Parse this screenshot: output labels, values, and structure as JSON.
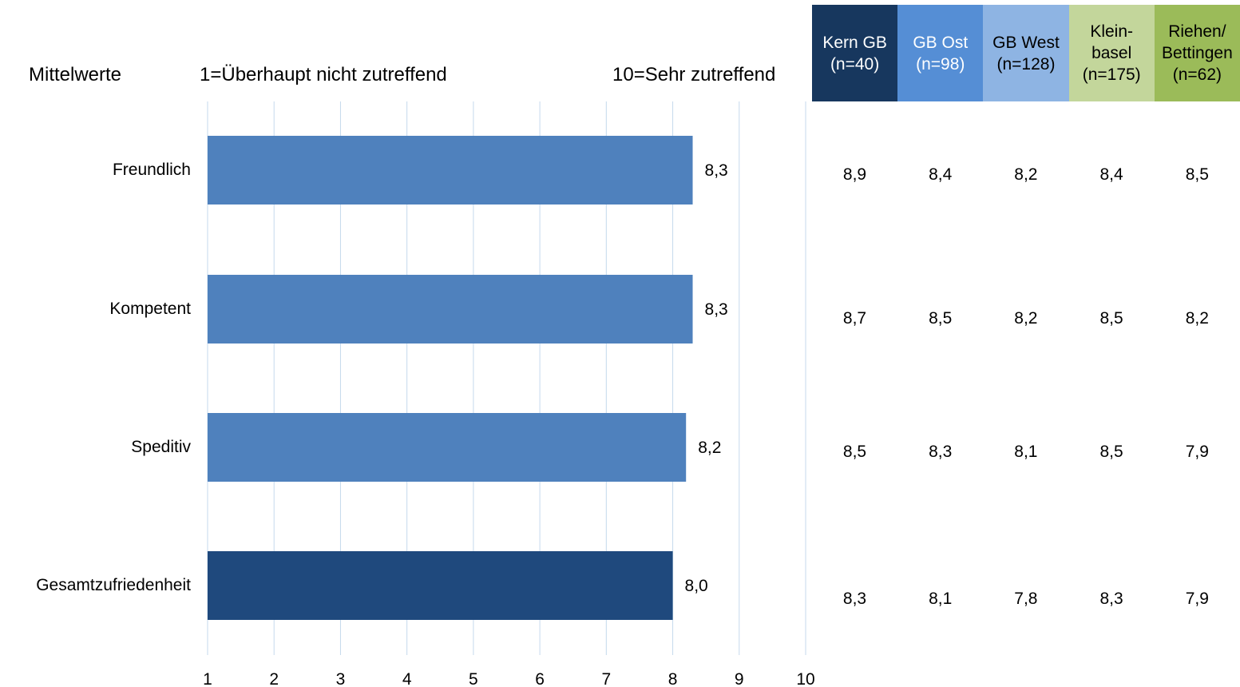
{
  "header": {
    "left": "Mittelwerte",
    "scale_low": "1=Überhaupt nicht zutreffend",
    "scale_high": "10=Sehr zutreffend"
  },
  "chart_data": {
    "type": "bar",
    "orientation": "horizontal",
    "categories": [
      "Freundlich",
      "Kompetent",
      "Speditiv",
      "Gesamtzufriedenheit"
    ],
    "values": [
      8.3,
      8.3,
      8.2,
      8.0
    ],
    "value_labels": [
      "8,3",
      "8,3",
      "8,2",
      "8,0"
    ],
    "bar_colors": [
      "#4f81bd",
      "#4f81bd",
      "#4f81bd",
      "#1f497d"
    ],
    "xlim": [
      1,
      10
    ],
    "xticks": [
      1,
      2,
      3,
      4,
      5,
      6,
      7,
      8,
      9,
      10
    ],
    "grid": "vertical",
    "gridline_color": "#c5d9ec"
  },
  "table": {
    "columns": [
      {
        "lines": [
          "Kern GB",
          "(n=40)"
        ],
        "bg": "#17375e",
        "fg": "#ffffff"
      },
      {
        "lines": [
          "GB Ost",
          "(n=98)"
        ],
        "bg": "#558ed5",
        "fg": "#ffffff"
      },
      {
        "lines": [
          "GB West",
          "(n=128)"
        ],
        "bg": "#8eb4e3",
        "fg": "#000000"
      },
      {
        "lines": [
          "Klein-",
          "basel",
          "(n=175)"
        ],
        "bg": "#c3d69b",
        "fg": "#000000"
      },
      {
        "lines": [
          "Riehen/",
          "Bettingen",
          "(n=62)"
        ],
        "bg": "#9bbb59",
        "fg": "#000000"
      }
    ],
    "rows": [
      [
        "8,9",
        "8,4",
        "8,2",
        "8,4",
        "8,5"
      ],
      [
        "8,7",
        "8,5",
        "8,2",
        "8,5",
        "8,2"
      ],
      [
        "8,5",
        "8,3",
        "8,1",
        "8,5",
        "7,9"
      ],
      [
        "8,3",
        "8,1",
        "7,8",
        "8,3",
        "7,9"
      ]
    ]
  }
}
